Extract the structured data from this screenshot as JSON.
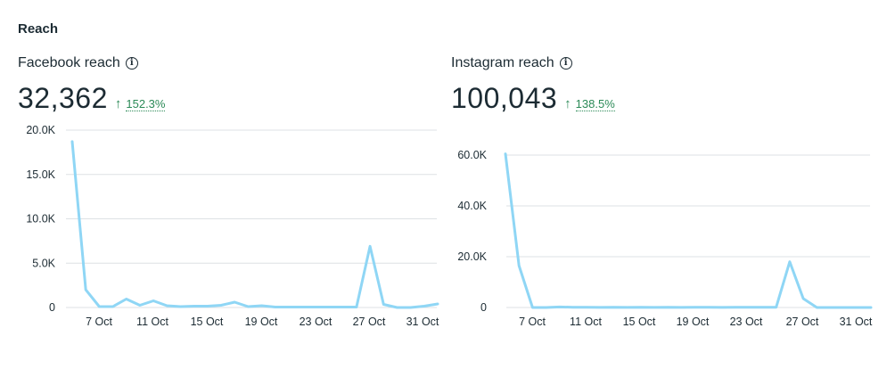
{
  "section": {
    "title": "Reach"
  },
  "colors": {
    "line": "#8fd6f5",
    "grid": "#dde1e4",
    "positive": "#2b8a57"
  },
  "panels": [
    {
      "label": "Facebook reach",
      "info_icon": "info-icon",
      "value": "32,362",
      "change": {
        "direction": "up",
        "arrow": "↑",
        "percent": "152.3%"
      },
      "chart_data": {
        "type": "line",
        "series": [
          {
            "values": [
              18700,
              2000,
              100,
              100,
              950,
              250,
              750,
              200,
              100,
              150,
              150,
              250,
              600,
              100,
              200,
              50,
              50,
              50,
              50,
              50,
              50,
              50,
              6900,
              350,
              0,
              0,
              150,
              400
            ]
          }
        ],
        "x_tick_labels": [
          "7 Oct",
          "11 Oct",
          "15 Oct",
          "19 Oct",
          "23 Oct",
          "27 Oct",
          "31 Oct"
        ],
        "y_ticks": [
          0,
          5000,
          10000,
          15000,
          20000
        ],
        "y_tick_labels": [
          "0",
          "5.0K",
          "10.0K",
          "15.0K",
          "20.0K"
        ],
        "ylim": [
          0,
          20000
        ],
        "grid": true
      }
    },
    {
      "label": "Instagram reach",
      "info_icon": "info-icon",
      "value": "100,043",
      "change": {
        "direction": "up",
        "arrow": "↑",
        "percent": "138.5%"
      },
      "chart_data": {
        "type": "line",
        "series": [
          {
            "values": [
              60500,
              16500,
              0,
              0,
              200,
              100,
              100,
              50,
              100,
              50,
              100,
              50,
              100,
              50,
              100,
              100,
              50,
              100,
              100,
              100,
              100,
              18000,
              3500,
              0,
              0,
              0,
              0,
              0
            ]
          }
        ],
        "x_tick_labels": [
          "7 Oct",
          "11 Oct",
          "15 Oct",
          "19 Oct",
          "23 Oct",
          "27 Oct",
          "31 Oct"
        ],
        "y_ticks": [
          0,
          20000,
          40000,
          60000
        ],
        "y_tick_labels": [
          "0",
          "20.0K",
          "40.0K",
          "60.0K"
        ],
        "ylim": [
          0,
          60000
        ],
        "grid": true
      }
    }
  ]
}
